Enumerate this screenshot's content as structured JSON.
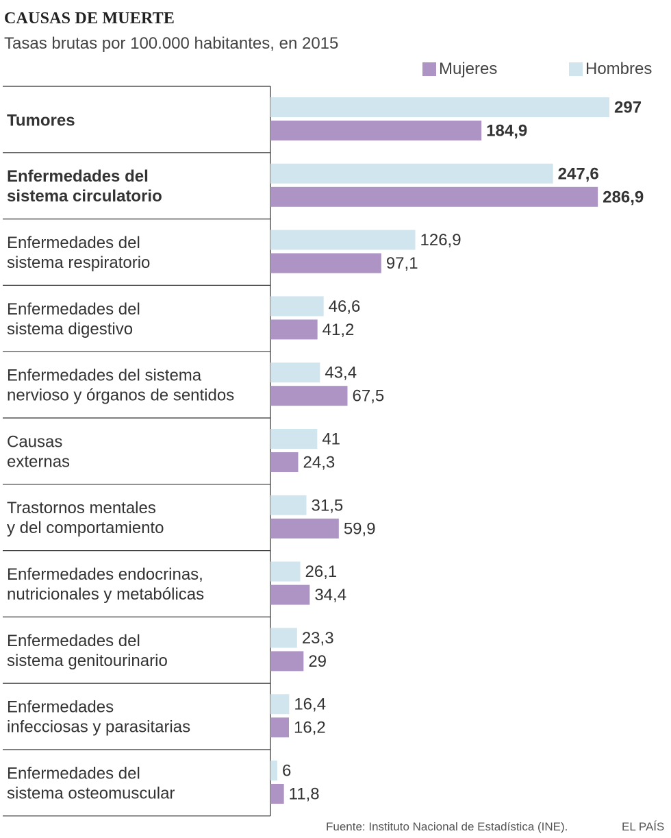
{
  "header": {
    "title": "CAUSAS DE MUERTE",
    "subtitle": "Tasas brutas por 100.000 habitantes, en 2015"
  },
  "legend": {
    "women": "Mujeres",
    "men": "Hombres"
  },
  "colors": {
    "women": "#ad94c5",
    "men": "#d1e5ee",
    "divider": "#333333"
  },
  "footer": {
    "source": "Fuente: Instituto Nacional de Estadística (INE).",
    "brand": "EL PAÍS"
  },
  "chart_data": {
    "type": "bar",
    "orientation": "horizontal",
    "title": "CAUSAS DE MUERTE",
    "subtitle": "Tasas brutas por 100.000 habitantes, en 2015",
    "legend_position": "top-right",
    "grid": false,
    "xlim": [
      0,
      297
    ],
    "categories": [
      {
        "lines": [
          "Tumores"
        ],
        "bold": true
      },
      {
        "lines": [
          "Enfermedades del",
          "sistema circulatorio"
        ],
        "bold": true
      },
      {
        "lines": [
          "Enfermedades del",
          "sistema respiratorio"
        ],
        "bold": false
      },
      {
        "lines": [
          "Enfermedades del",
          "sistema digestivo"
        ],
        "bold": false
      },
      {
        "lines": [
          "Enfermedades del sistema",
          "nervioso y órganos de sentidos"
        ],
        "bold": false
      },
      {
        "lines": [
          "Causas",
          "externas"
        ],
        "bold": false
      },
      {
        "lines": [
          "Trastornos mentales",
          "y del comportamiento"
        ],
        "bold": false
      },
      {
        "lines": [
          "Enfermedades endocrinas,",
          "nutricionales y metabólicas"
        ],
        "bold": false
      },
      {
        "lines": [
          "Enfermedades del",
          "sistema genitourinario"
        ],
        "bold": false
      },
      {
        "lines": [
          "Enfermedades",
          "infecciosas y parasitarias"
        ],
        "bold": false
      },
      {
        "lines": [
          "Enfermedades del",
          "sistema osteomuscular"
        ],
        "bold": false
      }
    ],
    "series": [
      {
        "name": "Hombres",
        "values": [
          297,
          247.6,
          126.9,
          46.6,
          43.4,
          41,
          31.5,
          26.1,
          23.3,
          16.4,
          6
        ],
        "labels": [
          "297",
          "247,6",
          "126,9",
          "46,6",
          "43,4",
          "41",
          "31,5",
          "26,1",
          "23,3",
          "16,4",
          "6"
        ]
      },
      {
        "name": "Mujeres",
        "values": [
          184.9,
          286.9,
          97.1,
          41.2,
          67.5,
          24.3,
          59.9,
          34.4,
          29,
          16.2,
          11.8
        ],
        "labels": [
          "184,9",
          "286,9",
          "97,1",
          "41,2",
          "67,5",
          "24,3",
          "59,9",
          "34,4",
          "29",
          "16,2",
          "11,8"
        ]
      }
    ]
  }
}
